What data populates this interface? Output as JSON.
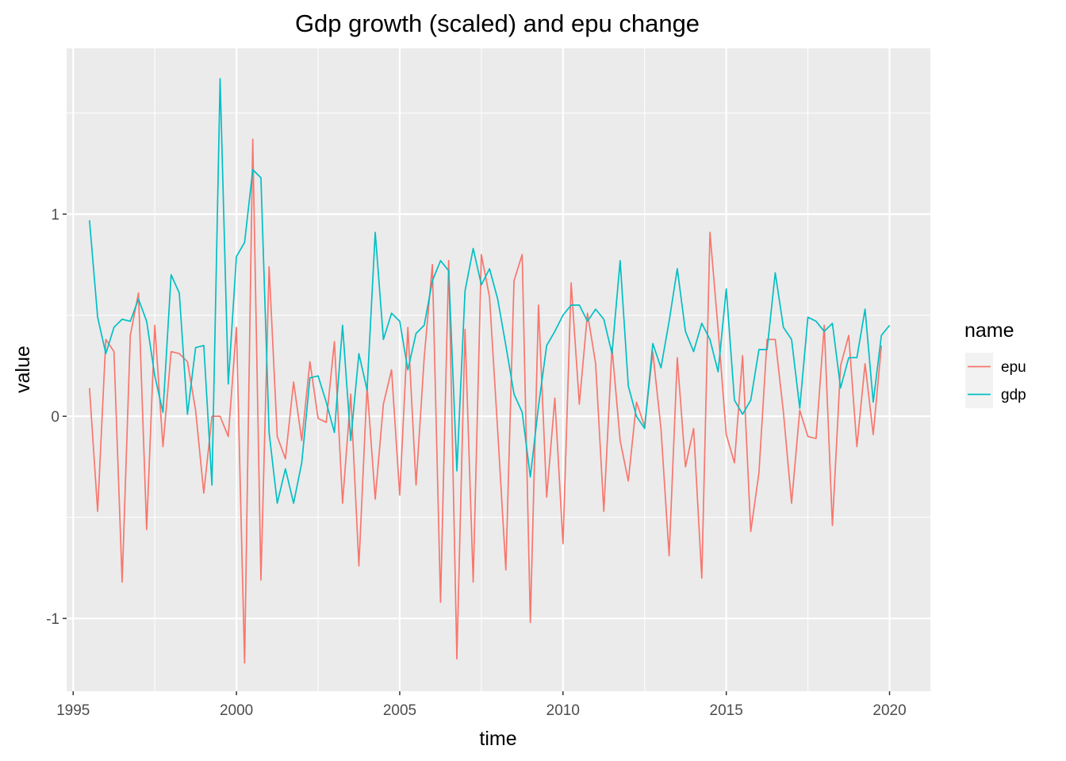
{
  "chart_data": {
    "type": "line",
    "title": "Gdp growth (scaled) and epu change",
    "xlabel": "time",
    "ylabel": "value",
    "xlim": [
      1994.8,
      2021.25
    ],
    "ylim": [
      -1.36,
      1.82
    ],
    "x_ticks": [
      1995,
      2000,
      2005,
      2010,
      2015,
      2020
    ],
    "x_tick_labels": [
      "1995",
      "2000",
      "2005",
      "2010",
      "2015",
      "2020"
    ],
    "y_ticks": [
      -1,
      0,
      1
    ],
    "y_tick_labels": [
      "-1",
      "0",
      "1"
    ],
    "grid": true,
    "legend": {
      "title": "name",
      "position": "right"
    },
    "x_start": 1995.5,
    "x_step": 0.25,
    "series": [
      {
        "name": "epu",
        "color": "#F8766D",
        "values": [
          0.14,
          -0.47,
          0.38,
          0.32,
          -0.82,
          0.4,
          0.61,
          -0.56,
          0.45,
          -0.15,
          0.32,
          0.31,
          0.27,
          0.03,
          -0.38,
          0.0,
          0.0,
          -0.1,
          0.44,
          -1.22,
          1.37,
          -0.81,
          0.74,
          -0.1,
          -0.21,
          0.17,
          -0.12,
          0.27,
          -0.01,
          -0.03,
          0.37,
          -0.43,
          0.11,
          -0.74,
          0.15,
          -0.41,
          0.06,
          0.23,
          -0.39,
          0.44,
          -0.34,
          0.29,
          0.75,
          -0.92,
          0.77,
          -1.2,
          0.43,
          -0.82,
          0.8,
          0.59,
          -0.07,
          -0.76,
          0.67,
          0.8,
          -1.02,
          0.55,
          -0.4,
          0.09,
          -0.63,
          0.66,
          0.06,
          0.51,
          0.26,
          -0.47,
          0.34,
          -0.12,
          -0.32,
          0.07,
          -0.05,
          0.32,
          -0.06,
          -0.69,
          0.29,
          -0.25,
          -0.06,
          -0.8,
          0.91,
          0.43,
          -0.09,
          -0.23,
          0.3,
          -0.57,
          -0.28,
          0.38,
          0.38,
          0.02,
          -0.43,
          0.03,
          -0.1,
          -0.11,
          0.45,
          -0.54,
          0.25,
          0.4,
          -0.15,
          0.26,
          -0.09,
          0.35
        ]
      },
      {
        "name": "gdp",
        "color": "#00BFC4",
        "values": [
          0.97,
          0.49,
          0.31,
          0.44,
          0.48,
          0.47,
          0.58,
          0.47,
          0.2,
          0.02,
          0.7,
          0.61,
          0.01,
          0.34,
          0.35,
          -0.34,
          1.67,
          0.16,
          0.79,
          0.86,
          1.22,
          1.18,
          -0.08,
          -0.43,
          -0.26,
          -0.43,
          -0.23,
          0.19,
          0.2,
          0.07,
          -0.08,
          0.45,
          -0.12,
          0.31,
          0.13,
          0.91,
          0.38,
          0.51,
          0.47,
          0.23,
          0.41,
          0.45,
          0.67,
          0.77,
          0.72,
          -0.27,
          0.62,
          0.83,
          0.65,
          0.73,
          0.58,
          0.35,
          0.11,
          0.02,
          -0.3,
          0.05,
          0.35,
          0.42,
          0.5,
          0.55,
          0.55,
          0.47,
          0.53,
          0.48,
          0.31,
          0.77,
          0.15,
          0.0,
          -0.06,
          0.36,
          0.24,
          0.47,
          0.73,
          0.42,
          0.32,
          0.46,
          0.38,
          0.22,
          0.63,
          0.08,
          0.01,
          0.08,
          0.33,
          0.33,
          0.71,
          0.44,
          0.38,
          0.04,
          0.49,
          0.47,
          0.42,
          0.46,
          0.14,
          0.29,
          0.29,
          0.53,
          0.07,
          0.4,
          0.45
        ]
      }
    ]
  }
}
